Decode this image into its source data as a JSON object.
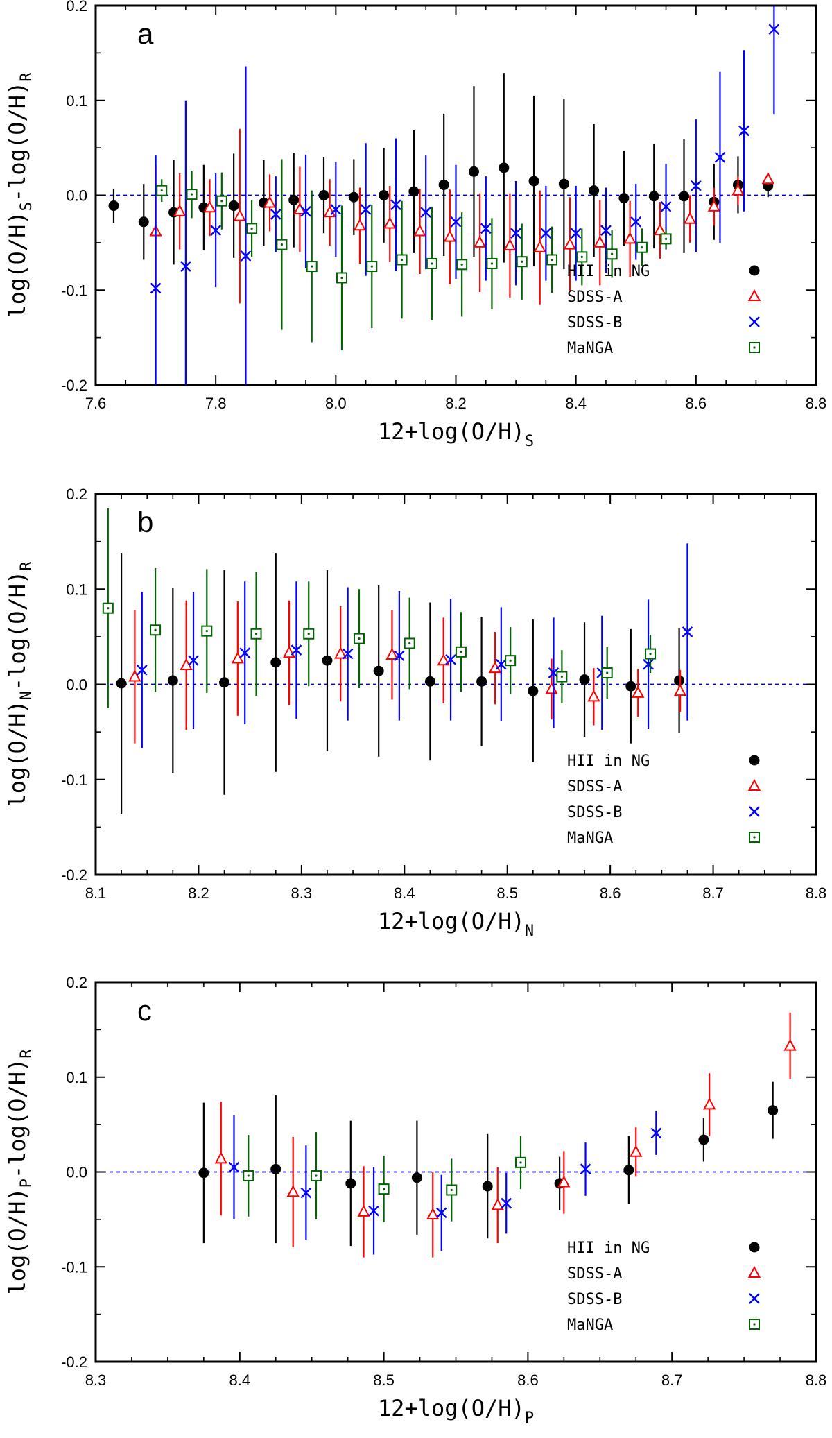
{
  "figure_colors": {
    "HII in NG": "#000000",
    "SDSS-A": "#ff0000",
    "SDSS-B": "#0000ff",
    "MaNGA": "#006400",
    "zero_line": "#0000cc"
  },
  "chart_data": [
    {
      "type": "scatter",
      "panel_label": "a",
      "xlabel_main": "12+log(O/H)",
      "xlabel_sub": "S",
      "ylabel": {
        "p1": "log(O/H)",
        "s1": "S",
        "p2": "-log(O/H)",
        "s2": "R"
      },
      "xlim": [
        7.6,
        8.8
      ],
      "ylim": [
        -0.2,
        0.2
      ],
      "xticks": [
        7.6,
        7.8,
        8.0,
        8.2,
        8.4,
        8.6,
        8.8
      ],
      "xtick_labels": [
        "7.6",
        "7.8",
        "8.0",
        "8.2",
        "8.4",
        "8.6",
        "8.8"
      ],
      "yticks": [
        -0.2,
        -0.1,
        0.0,
        0.1,
        0.2
      ],
      "ytick_labels": [
        "-0.2",
        "-0.1",
        "0.0",
        "0.1",
        "0.2"
      ],
      "legend": [
        "HII in NG",
        "SDSS-A",
        "SDSS-B",
        "MaNGA"
      ],
      "series": [
        {
          "name": "HII in NG",
          "marker": "circle",
          "x": [
            7.63,
            7.68,
            7.73,
            7.78,
            7.83,
            7.88,
            7.93,
            7.98,
            8.03,
            8.08,
            8.13,
            8.18,
            8.23,
            8.28,
            8.33,
            8.38,
            8.43,
            8.48,
            8.53,
            8.58,
            8.63,
            8.67,
            8.72
          ],
          "y": [
            -0.011,
            -0.028,
            -0.018,
            -0.013,
            -0.011,
            -0.008,
            -0.005,
            0.0,
            -0.002,
            0.0,
            0.004,
            0.011,
            0.025,
            0.029,
            0.015,
            0.012,
            0.005,
            -0.003,
            -0.001,
            -0.001,
            -0.007,
            0.011,
            0.01
          ],
          "err": [
            0.018,
            0.04,
            0.055,
            0.045,
            0.055,
            0.045,
            0.05,
            0.04,
            0.04,
            0.05,
            0.065,
            0.075,
            0.09,
            0.1,
            0.09,
            0.09,
            0.07,
            0.05,
            0.055,
            0.06,
            0.04,
            0.03,
            0.012
          ]
        },
        {
          "name": "SDSS-A",
          "marker": "triangle",
          "x": [
            7.7,
            7.74,
            7.79,
            7.84,
            7.89,
            7.94,
            7.99,
            8.04,
            8.09,
            8.14,
            8.19,
            8.24,
            8.29,
            8.34,
            8.39,
            8.44,
            8.49,
            8.54,
            8.59,
            8.63,
            8.67,
            8.72
          ],
          "y": [
            -0.038,
            -0.017,
            -0.013,
            -0.022,
            -0.008,
            -0.015,
            -0.018,
            -0.032,
            -0.03,
            -0.038,
            -0.044,
            -0.05,
            -0.053,
            -0.055,
            -0.052,
            -0.05,
            -0.046,
            -0.037,
            -0.025,
            -0.012,
            0.005,
            0.017
          ],
          "err": [
            0.07,
            0.04,
            0.03,
            0.092,
            0.03,
            0.045,
            0.035,
            0.04,
            0.04,
            0.045,
            0.05,
            0.052,
            0.055,
            0.06,
            0.05,
            0.045,
            0.04,
            0.03,
            0.025,
            0.02,
            0.015,
            0.006
          ]
        },
        {
          "name": "SDSS-B",
          "marker": "cross",
          "x": [
            7.7,
            7.75,
            7.8,
            7.85,
            7.9,
            7.95,
            8.0,
            8.05,
            8.1,
            8.15,
            8.2,
            8.25,
            8.3,
            8.35,
            8.4,
            8.45,
            8.5,
            8.55,
            8.6,
            8.64,
            8.68,
            8.73
          ],
          "y": [
            -0.098,
            -0.075,
            -0.037,
            -0.064,
            -0.02,
            -0.017,
            -0.015,
            -0.015,
            -0.01,
            -0.018,
            -0.028,
            -0.035,
            -0.04,
            -0.04,
            -0.04,
            -0.037,
            -0.028,
            -0.012,
            0.01,
            0.04,
            0.068,
            0.175
          ],
          "err": [
            0.14,
            0.175,
            0.06,
            0.2,
            0.04,
            0.06,
            0.05,
            0.07,
            0.07,
            0.06,
            0.06,
            0.055,
            0.055,
            0.05,
            0.05,
            0.045,
            0.04,
            0.045,
            0.07,
            0.09,
            0.085,
            0.09
          ]
        },
        {
          "name": "MaNGA",
          "marker": "square",
          "x": [
            7.71,
            7.76,
            7.81,
            7.86,
            7.91,
            7.96,
            8.01,
            8.06,
            8.11,
            8.16,
            8.21,
            8.26,
            8.31,
            8.36,
            8.41,
            8.46,
            8.51,
            8.55
          ],
          "y": [
            0.005,
            0.001,
            -0.006,
            -0.035,
            -0.052,
            -0.075,
            -0.087,
            -0.075,
            -0.068,
            -0.072,
            -0.073,
            -0.072,
            -0.07,
            -0.068,
            -0.065,
            -0.062,
            -0.055,
            -0.046
          ],
          "err": [
            0.012,
            0.025,
            0.03,
            0.03,
            0.09,
            0.08,
            0.076,
            0.065,
            0.062,
            0.06,
            0.055,
            0.048,
            0.04,
            0.035,
            0.03,
            0.025,
            0.02,
            0.01
          ]
        }
      ]
    },
    {
      "type": "scatter",
      "panel_label": "b",
      "xlabel_main": "12+log(O/H)",
      "xlabel_sub": "N",
      "ylabel": {
        "p1": "log(O/H)",
        "s1": "N",
        "p2": "-log(O/H)",
        "s2": "R"
      },
      "xlim": [
        8.1,
        8.8
      ],
      "ylim": [
        -0.2,
        0.2
      ],
      "xticks": [
        8.1,
        8.2,
        8.3,
        8.4,
        8.5,
        8.6,
        8.7,
        8.8
      ],
      "xtick_labels": [
        "8.1",
        "8.2",
        "8.3",
        "8.4",
        "8.5",
        "8.6",
        "8.7",
        "8.8"
      ],
      "yticks": [
        -0.2,
        -0.1,
        0.0,
        0.1,
        0.2
      ],
      "ytick_labels": [
        "-0.2",
        "-0.1",
        "0.0",
        "0.1",
        "0.2"
      ],
      "legend": [
        "HII in NG",
        "SDSS-A",
        "SDSS-B",
        "MaNGA"
      ],
      "series": [
        {
          "name": "HII in NG",
          "marker": "circle",
          "x": [
            8.125,
            8.175,
            8.225,
            8.275,
            8.325,
            8.375,
            8.425,
            8.475,
            8.525,
            8.575,
            8.62,
            8.667
          ],
          "y": [
            0.001,
            0.004,
            0.002,
            0.023,
            0.025,
            0.014,
            0.003,
            0.003,
            -0.007,
            0.005,
            -0.002,
            0.004
          ],
          "err": [
            0.137,
            0.097,
            0.118,
            0.115,
            0.095,
            0.09,
            0.083,
            0.068,
            0.075,
            0.06,
            0.06,
            0.055
          ]
        },
        {
          "name": "SDSS-A",
          "marker": "triangle",
          "x": [
            8.138,
            8.188,
            8.238,
            8.288,
            8.338,
            8.388,
            8.438,
            8.488,
            8.543,
            8.584,
            8.627,
            8.668
          ],
          "y": [
            0.008,
            0.02,
            0.027,
            0.033,
            0.032,
            0.031,
            0.025,
            0.017,
            -0.005,
            -0.013,
            -0.009,
            -0.007
          ],
          "err": [
            0.07,
            0.068,
            0.06,
            0.055,
            0.05,
            0.047,
            0.045,
            0.038,
            0.032,
            0.03,
            0.025,
            0.022
          ]
        },
        {
          "name": "SDSS-B",
          "marker": "cross",
          "x": [
            8.145,
            8.195,
            8.245,
            8.295,
            8.345,
            8.395,
            8.445,
            8.494,
            8.545,
            8.592,
            8.637,
            8.675
          ],
          "y": [
            0.015,
            0.025,
            0.033,
            0.036,
            0.032,
            0.03,
            0.026,
            0.021,
            0.012,
            0.012,
            0.021,
            0.055
          ],
          "err": [
            0.082,
            0.072,
            0.075,
            0.072,
            0.07,
            0.068,
            0.064,
            0.06,
            0.058,
            0.06,
            0.068,
            0.093
          ]
        },
        {
          "name": "MaNGA",
          "marker": "square",
          "x": [
            8.112,
            8.158,
            8.208,
            8.256,
            8.307,
            8.356,
            8.405,
            8.455,
            8.503,
            8.553,
            8.597,
            8.639
          ],
          "y": [
            0.08,
            0.057,
            0.056,
            0.053,
            0.053,
            0.048,
            0.043,
            0.034,
            0.025,
            0.008,
            0.012,
            0.032
          ],
          "err": [
            0.105,
            0.065,
            0.065,
            0.065,
            0.055,
            0.052,
            0.048,
            0.042,
            0.035,
            0.028,
            0.027,
            0.02
          ]
        }
      ]
    },
    {
      "type": "scatter",
      "panel_label": "c",
      "xlabel_main": "12+log(O/H)",
      "xlabel_sub": "P",
      "ylabel": {
        "p1": "log(O/H)",
        "s1": "P",
        "p2": "-log(O/H)",
        "s2": "R"
      },
      "xlim": [
        8.3,
        8.8
      ],
      "ylim": [
        -0.2,
        0.2
      ],
      "xticks": [
        8.3,
        8.4,
        8.5,
        8.6,
        8.7,
        8.8
      ],
      "xtick_labels": [
        "8.3",
        "8.4",
        "8.5",
        "8.6",
        "8.7",
        "8.8"
      ],
      "yticks": [
        -0.2,
        -0.1,
        0.0,
        0.1,
        0.2
      ],
      "ytick_labels": [
        "-0.2",
        "-0.1",
        "0.0",
        "0.1",
        "0.2"
      ],
      "legend": [
        "HII in NG",
        "SDSS-A",
        "SDSS-B",
        "MaNGA"
      ],
      "series": [
        {
          "name": "HII in NG",
          "marker": "circle",
          "x": [
            8.375,
            8.425,
            8.477,
            8.523,
            8.572,
            8.622,
            8.67,
            8.722,
            8.77
          ],
          "y": [
            -0.001,
            0.003,
            -0.012,
            -0.006,
            -0.015,
            -0.012,
            0.002,
            0.034,
            0.065
          ],
          "err": [
            0.074,
            0.078,
            0.066,
            0.06,
            0.055,
            0.028,
            0.036,
            0.023,
            0.03
          ]
        },
        {
          "name": "SDSS-A",
          "marker": "triangle",
          "x": [
            8.387,
            8.437,
            8.486,
            8.534,
            8.579,
            8.625,
            8.675,
            8.726,
            8.782
          ],
          "y": [
            0.014,
            -0.021,
            -0.042,
            -0.045,
            -0.035,
            -0.011,
            0.021,
            0.071,
            0.133
          ],
          "err": [
            0.06,
            0.058,
            0.048,
            0.045,
            0.04,
            0.033,
            0.026,
            0.033,
            0.035
          ]
        },
        {
          "name": "SDSS-B",
          "marker": "cross",
          "x": [
            8.396,
            8.446,
            8.493,
            8.54,
            8.585,
            8.64,
            8.689
          ],
          "y": [
            0.005,
            -0.022,
            -0.041,
            -0.043,
            -0.033,
            0.003,
            0.041
          ],
          "err": [
            0.055,
            0.05,
            0.046,
            0.04,
            0.032,
            0.028,
            0.023
          ]
        },
        {
          "name": "MaNGA",
          "marker": "square",
          "x": [
            8.406,
            8.453,
            8.5,
            8.547,
            8.595
          ],
          "y": [
            -0.004,
            -0.004,
            -0.018,
            -0.019,
            0.01
          ],
          "err": [
            0.043,
            0.046,
            0.035,
            0.033,
            0.028
          ]
        }
      ]
    }
  ]
}
